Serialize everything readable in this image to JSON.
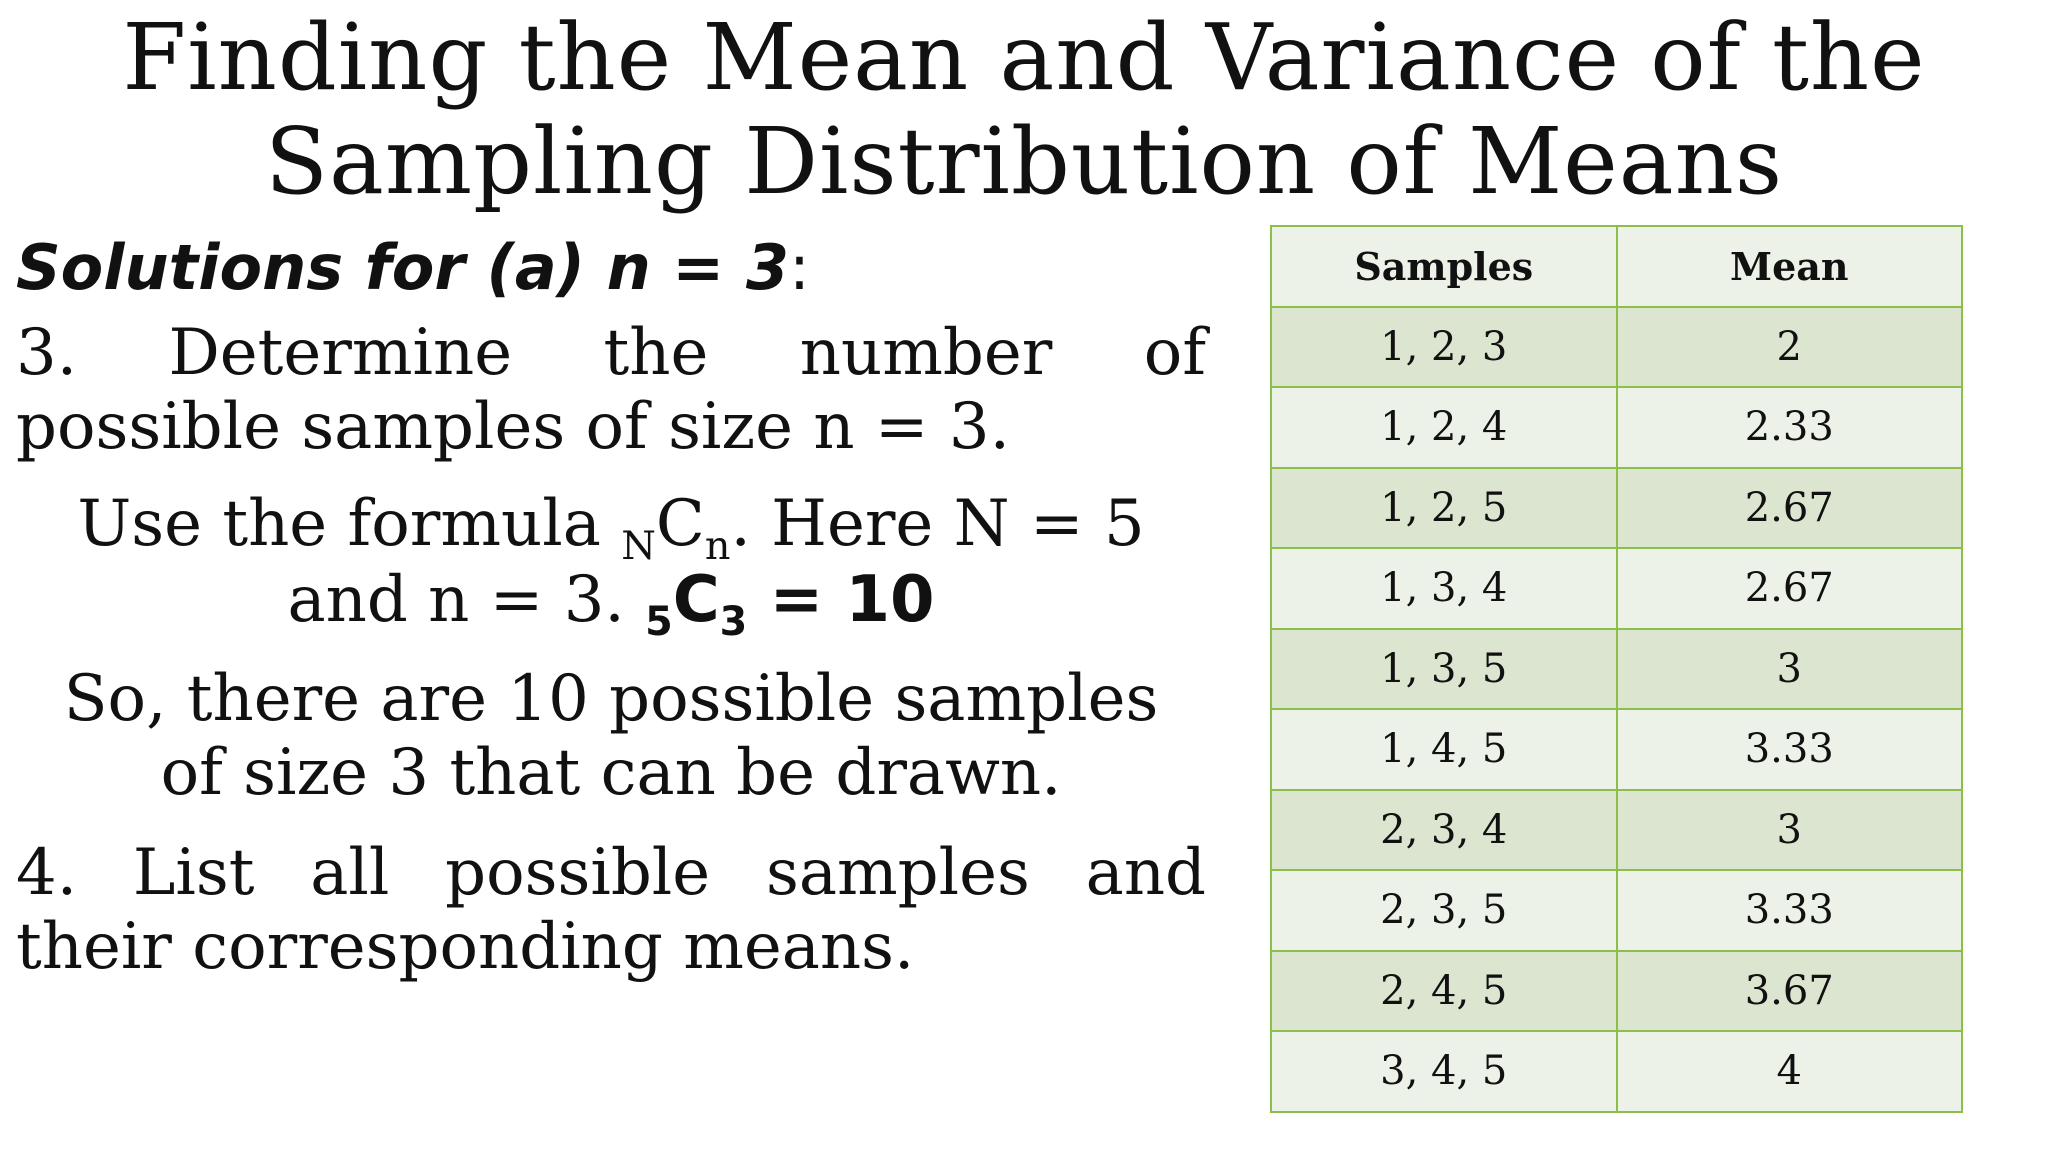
{
  "title": {
    "line1": "Finding the Mean and Variance of the",
    "line2": "Sampling Distribution of Means"
  },
  "left": {
    "heading": "Solutions for (a) n = 3",
    "heading_colon": ":",
    "step3_line1": "3. Determine the number of",
    "step3_line2": "possible samples of size n = 3.",
    "formula_text1": "Use the formula ",
    "formula_sub_N": "N",
    "formula_C": "C",
    "formula_sub_n": "n",
    "formula_text2": ". Here N = 5",
    "formula_line2_prefix": "and n = 3. ",
    "formula_result_sub5": "5",
    "formula_result_C": "C",
    "formula_result_sub3": "3",
    "formula_result_value": " = 10",
    "conclusion_line1": "So, there are 10 possible samples",
    "conclusion_line2": "of size 3 that can be drawn.",
    "step4_line1": "4. List all possible samples and",
    "step4_line2": "their corresponding means."
  },
  "table": {
    "headers": [
      "Samples",
      "Mean"
    ],
    "rows": [
      [
        "1, 2, 3",
        "2"
      ],
      [
        "1, 2, 4",
        "2.33"
      ],
      [
        "1, 2, 5",
        "2.67"
      ],
      [
        "1, 3, 4",
        "2.67"
      ],
      [
        "1, 3, 5",
        "3"
      ],
      [
        "1, 4, 5",
        "3.33"
      ],
      [
        "2, 3, 4",
        "3"
      ],
      [
        "2, 3, 5",
        "3.33"
      ],
      [
        "2, 4, 5",
        "3.67"
      ],
      [
        "3, 4, 5",
        "4"
      ]
    ]
  },
  "colors": {
    "table_border": "#8cbf4a",
    "row_dark": "#dbe5d0",
    "row_light": "#edf2e9"
  }
}
